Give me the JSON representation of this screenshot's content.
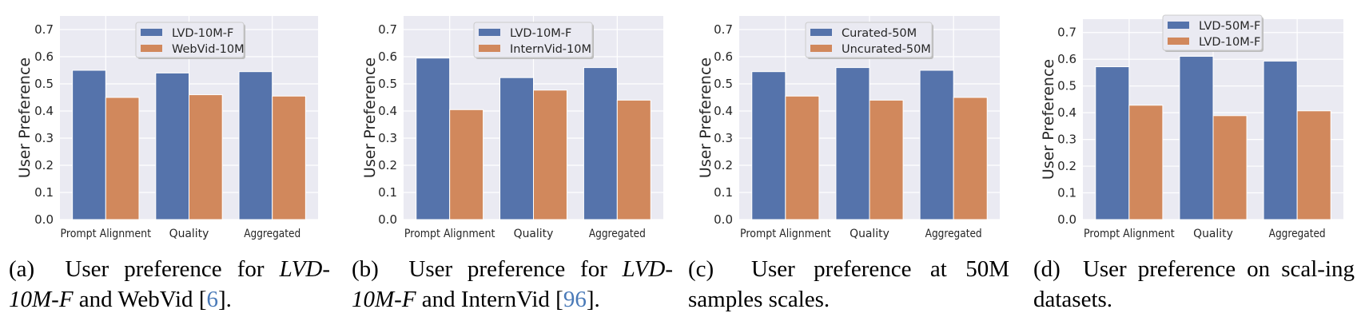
{
  "colors": {
    "series1": "#5573ab",
    "series2": "#d1885c",
    "plot_bg": "#eaeaf2",
    "grid": "#ffffff",
    "ref_link": "#4a7ab8"
  },
  "chart_data": [
    {
      "type": "bar",
      "categories": [
        "Prompt Alignment",
        "Quality",
        "Aggregated"
      ],
      "ylabel": "User Preference",
      "ylim": [
        0,
        0.75
      ],
      "yticks": [
        "0.0",
        "0.1",
        "0.2",
        "0.3",
        "0.4",
        "0.5",
        "0.6",
        "0.7"
      ],
      "grid": true,
      "legend_position": "top-center",
      "series": [
        {
          "name": "LVD-10M-F",
          "values": [
            0.55,
            0.54,
            0.545
          ]
        },
        {
          "name": "WebVid-10M",
          "values": [
            0.45,
            0.46,
            0.455
          ]
        }
      ],
      "caption": {
        "label": "(a)",
        "text_before": "User preference for",
        "italic": "LVD-10M-F",
        "text_after": "and WebVid",
        "ref": "6"
      }
    },
    {
      "type": "bar",
      "categories": [
        "Prompt Alignment",
        "Quality",
        "Aggregated"
      ],
      "ylabel": "User Preference",
      "ylim": [
        0,
        0.75
      ],
      "yticks": [
        "0.0",
        "0.1",
        "0.2",
        "0.3",
        "0.4",
        "0.5",
        "0.6",
        "0.7"
      ],
      "grid": true,
      "legend_position": "top-center",
      "series": [
        {
          "name": "LVD-10M-F",
          "values": [
            0.595,
            0.523,
            0.56
          ]
        },
        {
          "name": "InternVid-10M",
          "values": [
            0.405,
            0.477,
            0.44
          ]
        }
      ],
      "caption": {
        "label": "(b)",
        "text_before": "User preference for",
        "italic": "LVD-10M-F",
        "text_after": "and InternVid",
        "ref": "96"
      }
    },
    {
      "type": "bar",
      "categories": [
        "Prompt Alignment",
        "Quality",
        "Aggregated"
      ],
      "ylabel": "User Preference",
      "ylim": [
        0,
        0.75
      ],
      "yticks": [
        "0.0",
        "0.1",
        "0.2",
        "0.3",
        "0.4",
        "0.5",
        "0.6",
        "0.7"
      ],
      "grid": true,
      "legend_position": "top-right",
      "series": [
        {
          "name": "Curated-50M",
          "values": [
            0.545,
            0.56,
            0.55
          ]
        },
        {
          "name": "Uncurated-50M",
          "values": [
            0.455,
            0.44,
            0.45
          ]
        }
      ],
      "caption": {
        "label": "(c)",
        "text_before": "User preference at 50M samples scales.",
        "italic": "",
        "text_after": "",
        "ref": ""
      }
    },
    {
      "type": "bar",
      "categories": [
        "Prompt Alignment",
        "Quality",
        "Aggregated"
      ],
      "ylabel": "User Preference",
      "ylim": [
        0,
        0.75
      ],
      "yticks": [
        "0.0",
        "0.1",
        "0.2",
        "0.3",
        "0.4",
        "0.5",
        "0.6",
        "0.7"
      ],
      "grid": true,
      "legend_position": "top-right",
      "series": [
        {
          "name": "LVD-50M-F",
          "values": [
            0.572,
            0.611,
            0.593
          ]
        },
        {
          "name": "LVD-10M-F",
          "values": [
            0.428,
            0.389,
            0.407
          ]
        }
      ],
      "caption": {
        "label": "(d)",
        "text_before": "User preference on scal-ing datasets.",
        "italic": "",
        "text_after": "",
        "ref": ""
      }
    }
  ]
}
